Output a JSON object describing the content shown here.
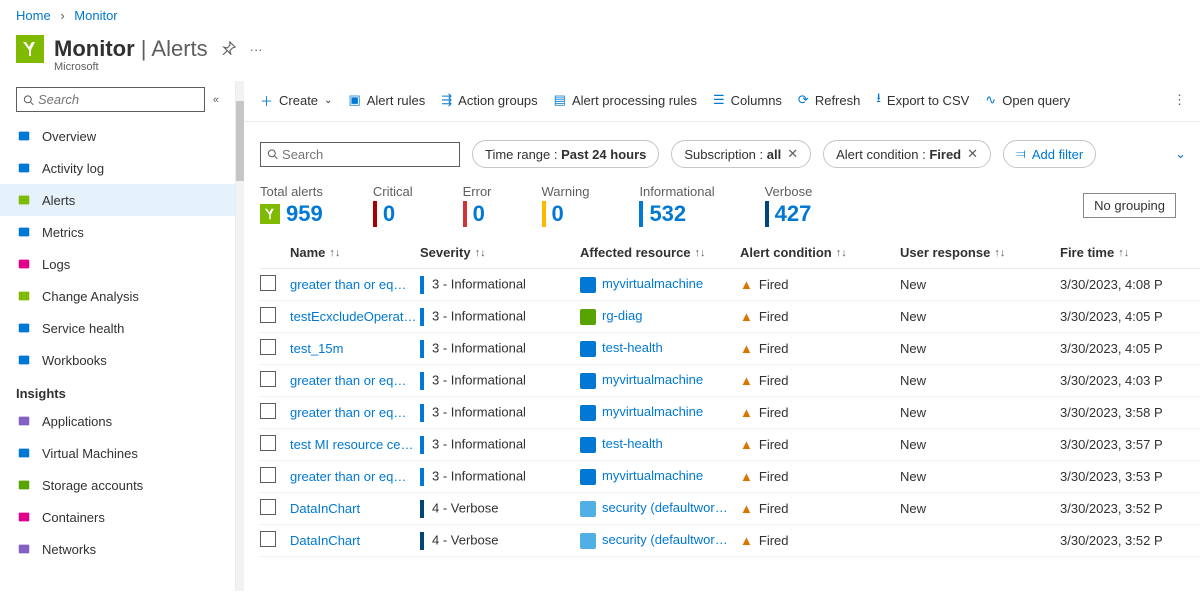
{
  "breadcrumb": {
    "home": "Home",
    "current": "Monitor"
  },
  "header": {
    "title_main": "Monitor",
    "title_sep": " | ",
    "title_sub": "Alerts",
    "subtitle": "Microsoft"
  },
  "sidebar": {
    "search_placeholder": "Search",
    "items": [
      {
        "label": "Overview",
        "icon": "globe",
        "color": "#0078d4"
      },
      {
        "label": "Activity log",
        "icon": "doc",
        "color": "#0078d4"
      },
      {
        "label": "Alerts",
        "icon": "speaker",
        "color": "#7fba00",
        "active": true
      },
      {
        "label": "Metrics",
        "icon": "bars",
        "color": "#0078d4"
      },
      {
        "label": "Logs",
        "icon": "log",
        "color": "#e3008c"
      },
      {
        "label": "Change Analysis",
        "icon": "pulse",
        "color": "#7fba00"
      },
      {
        "label": "Service health",
        "icon": "heart",
        "color": "#0078d4"
      },
      {
        "label": "Workbooks",
        "icon": "book",
        "color": "#0078d4"
      }
    ],
    "section": "Insights",
    "insight_items": [
      {
        "label": "Applications",
        "icon": "bulb",
        "color": "#8661c5"
      },
      {
        "label": "Virtual Machines",
        "icon": "vm",
        "color": "#0078d4"
      },
      {
        "label": "Storage accounts",
        "icon": "storage",
        "color": "#57a300"
      },
      {
        "label": "Containers",
        "icon": "container",
        "color": "#e3008c"
      },
      {
        "label": "Networks",
        "icon": "net",
        "color": "#8661c5"
      }
    ]
  },
  "toolbar": {
    "create": "Create",
    "alert_rules": "Alert rules",
    "action_groups": "Action groups",
    "apr": "Alert processing rules",
    "columns": "Columns",
    "refresh": "Refresh",
    "export": "Export to CSV",
    "open_query": "Open query"
  },
  "filters": {
    "search_placeholder": "Search",
    "pills": [
      {
        "label": "Time range : ",
        "value": "Past 24 hours",
        "closable": false
      },
      {
        "label": "Subscription : ",
        "value": "all",
        "closable": true
      },
      {
        "label": "Alert condition : ",
        "value": "Fired",
        "closable": true
      }
    ],
    "add": "Add filter"
  },
  "summary": {
    "items": [
      {
        "label": "Total alerts",
        "value": "959",
        "color": "#7fba00",
        "icon": true
      },
      {
        "label": "Critical",
        "value": "0",
        "color": "#a80000"
      },
      {
        "label": "Error",
        "value": "0",
        "color": "#d13438"
      },
      {
        "label": "Warning",
        "value": "0",
        "color": "#ffb900"
      },
      {
        "label": "Informational",
        "value": "532",
        "color": "#0078d4"
      },
      {
        "label": "Verbose",
        "value": "427",
        "color": "#004578"
      }
    ],
    "grouping": "No grouping"
  },
  "table": {
    "columns": [
      "Name",
      "Severity",
      "Affected resource",
      "Alert condition",
      "User response",
      "Fire time"
    ],
    "rows": [
      {
        "name": "greater than or eq…",
        "sev": "3 - Informational",
        "sevcolor": "#0078d4",
        "res": "myvirtualmachine",
        "resicon": "#0078d4",
        "cond": "Fired",
        "ur": "New",
        "ft": "3/30/2023, 4:08 P"
      },
      {
        "name": "testEcxcludeOperat…",
        "sev": "3 - Informational",
        "sevcolor": "#0078d4",
        "res": "rg-diag",
        "resicon": "#57a300",
        "cond": "Fired",
        "ur": "New",
        "ft": "3/30/2023, 4:05 P"
      },
      {
        "name": "test_15m",
        "sev": "3 - Informational",
        "sevcolor": "#0078d4",
        "res": "test-health",
        "resicon": "#0078d4",
        "cond": "Fired",
        "ur": "New",
        "ft": "3/30/2023, 4:05 P"
      },
      {
        "name": "greater than or eq…",
        "sev": "3 - Informational",
        "sevcolor": "#0078d4",
        "res": "myvirtualmachine",
        "resicon": "#0078d4",
        "cond": "Fired",
        "ur": "New",
        "ft": "3/30/2023, 4:03 P"
      },
      {
        "name": "greater than or eq…",
        "sev": "3 - Informational",
        "sevcolor": "#0078d4",
        "res": "myvirtualmachine",
        "resicon": "#0078d4",
        "cond": "Fired",
        "ur": "New",
        "ft": "3/30/2023, 3:58 P"
      },
      {
        "name": "test MI resource ce…",
        "sev": "3 - Informational",
        "sevcolor": "#0078d4",
        "res": "test-health",
        "resicon": "#0078d4",
        "cond": "Fired",
        "ur": "New",
        "ft": "3/30/2023, 3:57 P"
      },
      {
        "name": "greater than or eq…",
        "sev": "3 - Informational",
        "sevcolor": "#0078d4",
        "res": "myvirtualmachine",
        "resicon": "#0078d4",
        "cond": "Fired",
        "ur": "New",
        "ft": "3/30/2023, 3:53 P"
      },
      {
        "name": "DataInChart",
        "sev": "4 - Verbose",
        "sevcolor": "#004578",
        "res": "security (defaultwor…",
        "resicon": "#50b0e6",
        "cond": "Fired",
        "ur": "New",
        "ft": "3/30/2023, 3:52 P"
      },
      {
        "name": "DataInChart",
        "sev": "4 - Verbose",
        "sevcolor": "#004578",
        "res": "security (defaultwor…",
        "resicon": "#50b0e6",
        "cond": "Fired",
        "ur": "",
        "ft": "3/30/2023, 3:52 P"
      }
    ]
  }
}
